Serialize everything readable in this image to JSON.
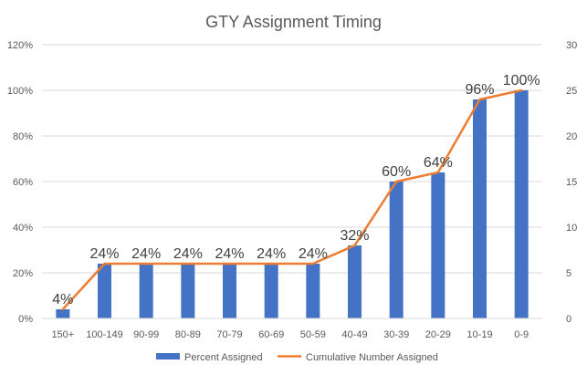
{
  "chart_data": {
    "type": "bar",
    "title": "GTY Assignment Timing",
    "categories": [
      "150+",
      "100-149",
      "90-99",
      "80-89",
      "70-79",
      "60-69",
      "50-59",
      "40-49",
      "30-39",
      "20-29",
      "10-19",
      "0-9"
    ],
    "series": [
      {
        "name": "Percent Assigned",
        "type": "bar",
        "axis": "left",
        "values": [
          4,
          24,
          24,
          24,
          24,
          24,
          24,
          32,
          60,
          64,
          96,
          100
        ],
        "data_labels": [
          "4%",
          "24%",
          "24%",
          "24%",
          "24%",
          "24%",
          "24%",
          "32%",
          "60%",
          "64%",
          "96%",
          "100%"
        ],
        "color": "#4472C4"
      },
      {
        "name": "Cumulative Number Assigned",
        "type": "line",
        "axis": "right",
        "values": [
          1,
          6,
          6,
          6,
          6,
          6,
          6,
          8,
          15,
          16,
          24,
          25
        ],
        "color": "#ED7D31"
      }
    ],
    "y_left": {
      "ylim": [
        0,
        120
      ],
      "ticks": [
        0,
        20,
        40,
        60,
        80,
        100,
        120
      ],
      "tick_labels": [
        "0%",
        "20%",
        "40%",
        "60%",
        "80%",
        "100%",
        "120%"
      ]
    },
    "y_right": {
      "ylim": [
        0,
        30
      ],
      "ticks": [
        0,
        5,
        10,
        15,
        20,
        25,
        30
      ],
      "tick_labels": [
        "0",
        "5",
        "10",
        "15",
        "20",
        "25",
        "30"
      ]
    },
    "grid": true,
    "legend_position": "bottom",
    "gridline_color": "#D9D9D9",
    "axis_text_color": "#595959"
  }
}
